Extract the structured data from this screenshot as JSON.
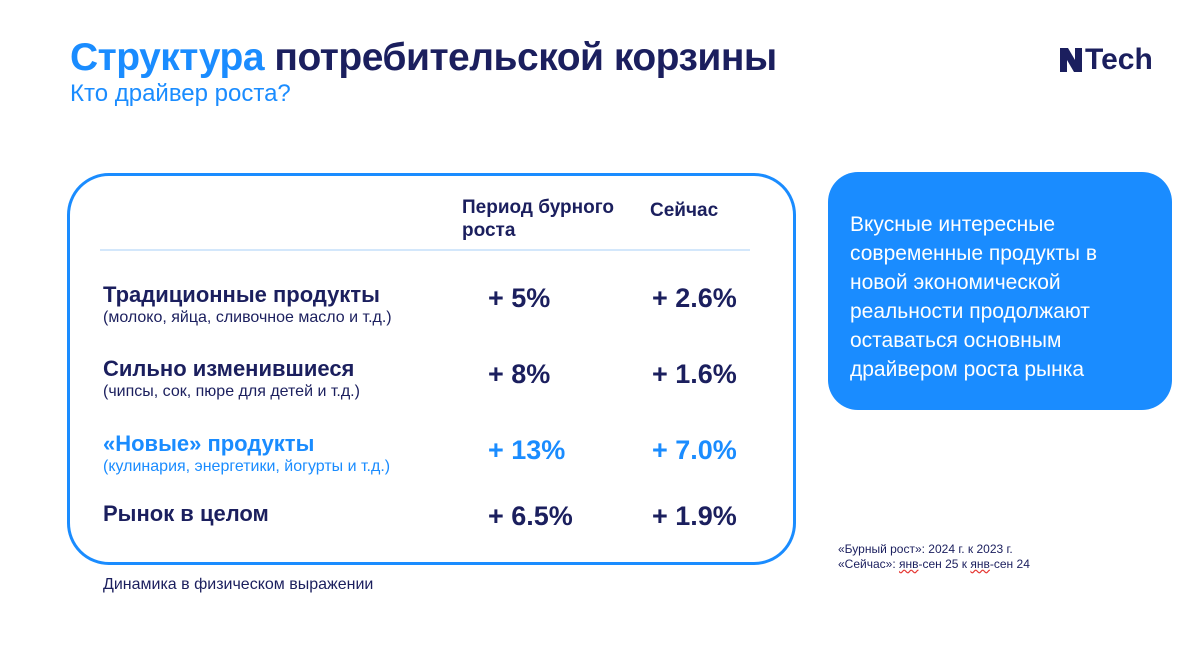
{
  "header": {
    "title_accent": "Структура",
    "title_rest": "потребительской корзины",
    "subtitle": "Кто драйвер роста?",
    "logo_text": "Tech"
  },
  "table": {
    "col_period": "Период бурного роста",
    "col_now": "Сейчас",
    "rows": [
      {
        "title": "Традиционные продукты",
        "subtitle": "(молоко, яйца, сливочное масло и т.д.)",
        "period": "+ 5%",
        "now": "+ 2.6%"
      },
      {
        "title": "Сильно изменившиеся",
        "subtitle": "(чипсы, сок, пюре для детей и т.д.)",
        "period": "+ 8%",
        "now": "+ 1.6%"
      },
      {
        "title": "«Новые» продукты",
        "subtitle": "(кулинария, энергетики, йогурты и т.д.)",
        "period": "+ 13%",
        "now": "+ 7.0%"
      },
      {
        "title": "Рынок в целом",
        "subtitle": "",
        "period": "+ 6.5%",
        "now": "+ 1.9%"
      }
    ]
  },
  "callout": {
    "text": "Вкусные интересные современные продукты в новой экономической реальности продолжают оставаться основным драйвером роста рынка"
  },
  "notes": {
    "line1": "«Бурный рост»: 2024 г. к 2023 г.",
    "line2_prefix": "«Сейчас»: ",
    "line2_u1": "янв",
    "line2_mid": "-сен 25 к ",
    "line2_u2": "янв",
    "line2_end": "-сен 24"
  },
  "footer": {
    "text": "Динамика в физическом выражении"
  },
  "colors": {
    "accent": "#1a8cff",
    "navy": "#1b1f5e"
  }
}
